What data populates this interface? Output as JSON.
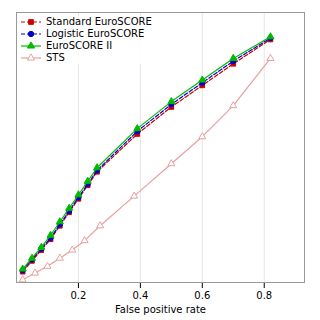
{
  "chart_data": {
    "type": "line",
    "xlabel": "False positive rate",
    "xlim": [
      0.0,
      0.93
    ],
    "ylim": [
      0.0,
      1.0
    ],
    "xticks": [
      0.2,
      0.4,
      0.6,
      0.8
    ],
    "yticks": [],
    "tick_labels": "x",
    "grid": true,
    "legend": "upper left",
    "series": [
      {
        "name": "Standard EuroSCORE",
        "color": "#cc0000",
        "line_style": "dashed",
        "marker": "square",
        "x": [
          0.02,
          0.05,
          0.08,
          0.11,
          0.14,
          0.17,
          0.2,
          0.23,
          0.26,
          0.39,
          0.5,
          0.6,
          0.7,
          0.82
        ],
        "values": [
          0.04,
          0.08,
          0.12,
          0.16,
          0.21,
          0.26,
          0.31,
          0.36,
          0.41,
          0.55,
          0.65,
          0.73,
          0.81,
          0.9
        ]
      },
      {
        "name": "Logistic EuroSCORE",
        "color": "#0000cc",
        "line_style": "dashed",
        "marker": "circle",
        "x": [
          0.02,
          0.05,
          0.08,
          0.11,
          0.14,
          0.17,
          0.2,
          0.23,
          0.26,
          0.39,
          0.5,
          0.6,
          0.7,
          0.82
        ],
        "values": [
          0.045,
          0.085,
          0.125,
          0.165,
          0.215,
          0.265,
          0.315,
          0.365,
          0.415,
          0.56,
          0.66,
          0.74,
          0.82,
          0.905
        ]
      },
      {
        "name": "EuroSCORE II",
        "color": "#00bb00",
        "line_style": "solid",
        "marker": "triangle",
        "x": [
          0.02,
          0.05,
          0.08,
          0.11,
          0.14,
          0.17,
          0.2,
          0.23,
          0.26,
          0.39,
          0.5,
          0.6,
          0.7,
          0.82
        ],
        "values": [
          0.05,
          0.09,
          0.13,
          0.175,
          0.225,
          0.275,
          0.325,
          0.375,
          0.425,
          0.57,
          0.67,
          0.75,
          0.83,
          0.91
        ]
      },
      {
        "name": "STS",
        "color": "#e8a0a0",
        "line_style": "solid",
        "marker": "triangle-open",
        "x": [
          0.02,
          0.06,
          0.1,
          0.14,
          0.18,
          0.22,
          0.27,
          0.38,
          0.5,
          0.6,
          0.7,
          0.82
        ],
        "values": [
          0.01,
          0.035,
          0.06,
          0.09,
          0.12,
          0.155,
          0.21,
          0.32,
          0.44,
          0.54,
          0.655,
          0.83
        ]
      }
    ]
  }
}
